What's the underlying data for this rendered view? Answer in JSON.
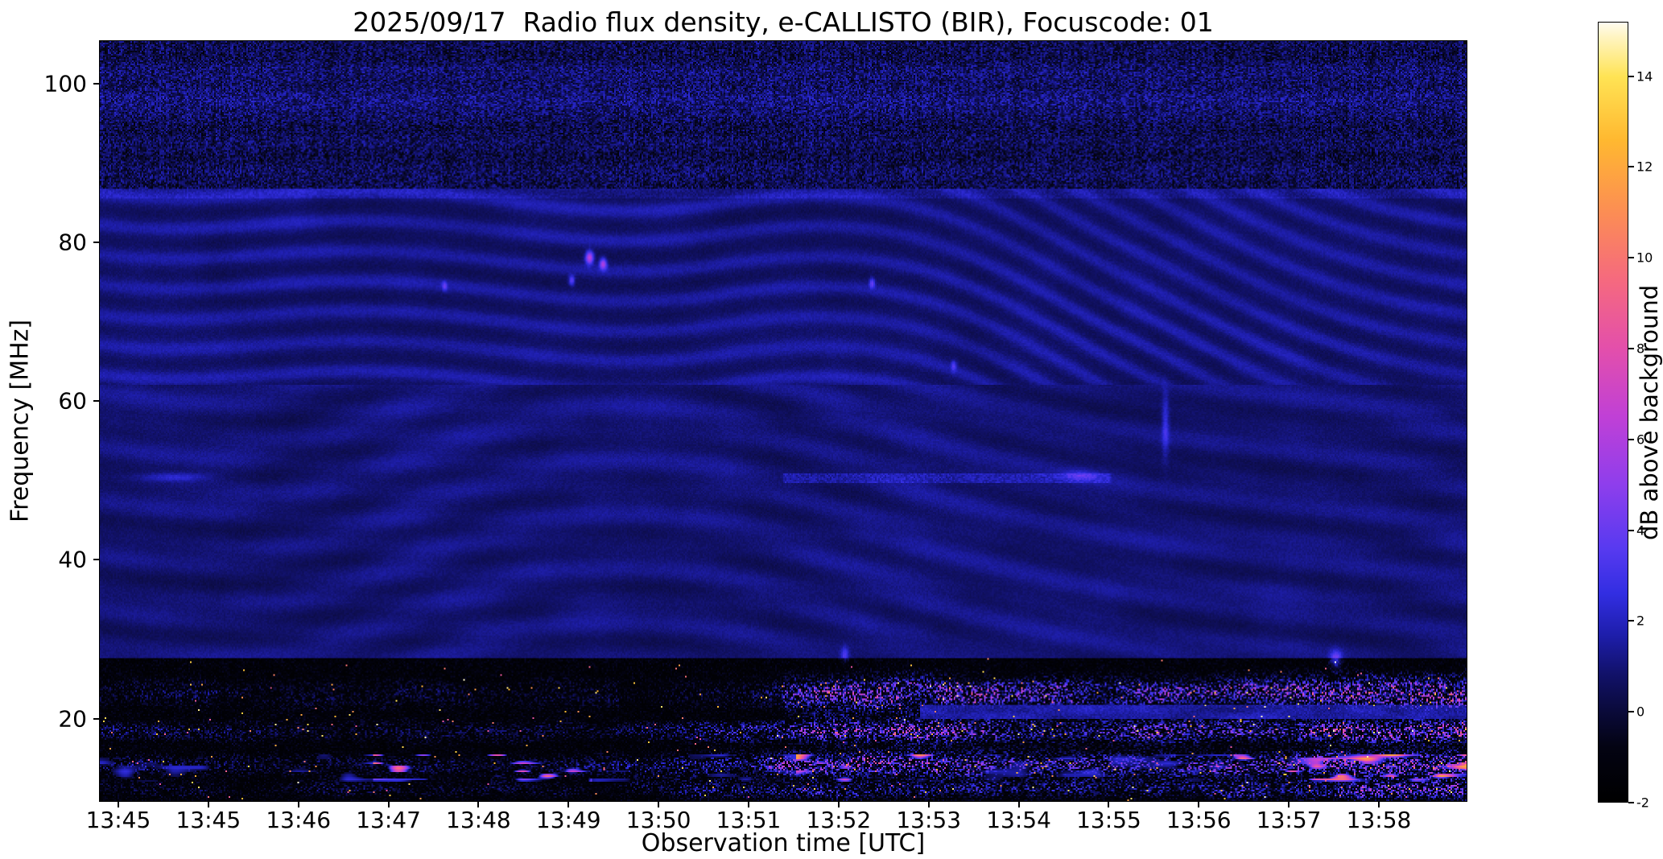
{
  "chart_data": {
    "type": "heatmap",
    "title": "2025/09/17  Radio flux density, e-CALLISTO (BIR), Focuscode: 01",
    "xlabel": "Observation time [UTC]",
    "ylabel": "Frequency [MHz]",
    "date": "2025/09/17",
    "station": "e-CALLISTO (BIR)",
    "focuscode": "01",
    "x_tick_labels": [
      "13:45",
      "13:45",
      "13:46",
      "13:47",
      "13:48",
      "13:49",
      "13:50",
      "13:51",
      "13:52",
      "13:53",
      "13:54",
      "13:55",
      "13:56",
      "13:57",
      "13:58"
    ],
    "y_tick_values": [
      20,
      40,
      60,
      80,
      100
    ],
    "freq_range_mhz": [
      9.5,
      105.5
    ],
    "time_range_utc": [
      "13:45",
      "13:59"
    ],
    "grid": false,
    "legend": false,
    "x_tick_layout": {
      "first_frac": 0.0141,
      "step_frac": 0.0658
    },
    "color_scale": {
      "label": "dB above background",
      "tick_values": [
        -2,
        0,
        2,
        4,
        6,
        8,
        10,
        12,
        14
      ],
      "vmin": -2,
      "vmax": 15.2,
      "stops": [
        {
          "v": -2.0,
          "rgb": [
            0,
            0,
            0
          ]
        },
        {
          "v": -0.8,
          "rgb": [
            3,
            3,
            18
          ]
        },
        {
          "v": 0.0,
          "rgb": [
            10,
            10,
            58
          ]
        },
        {
          "v": 0.8,
          "rgb": [
            17,
            17,
            104
          ]
        },
        {
          "v": 1.7,
          "rgb": [
            30,
            30,
            172
          ]
        },
        {
          "v": 2.6,
          "rgb": [
            50,
            46,
            226
          ]
        },
        {
          "v": 3.6,
          "rgb": [
            88,
            58,
            240
          ]
        },
        {
          "v": 5.0,
          "rgb": [
            142,
            62,
            236
          ]
        },
        {
          "v": 6.5,
          "rgb": [
            192,
            64,
            214
          ]
        },
        {
          "v": 8.0,
          "rgb": [
            227,
            79,
            171
          ]
        },
        {
          "v": 9.5,
          "rgb": [
            245,
            105,
            127
          ]
        },
        {
          "v": 11.0,
          "rgb": [
            252,
            141,
            84
          ]
        },
        {
          "v": 12.6,
          "rgb": [
            255,
            184,
            48
          ]
        },
        {
          "v": 14.0,
          "rgb": [
            255,
            227,
            84
          ]
        },
        {
          "v": 14.9,
          "rgb": [
            255,
            245,
            196
          ]
        },
        {
          "v": 15.2,
          "rgb": [
            255,
            252,
            240
          ]
        }
      ]
    },
    "features": [
      "Quiet dark-blue background (~0-1 dB) over 28-86 MHz crossed by slowly drifting wavy interference fringes that steepen into diagonal herringbone stripes after ~13:52",
      "Speckled near-background noise band from ~87-105 MHz",
      "Strong broadband HF interference below ~27 MHz in bands near 23, 18, 14 and 11 MHz with bursts up to ~15 dB, intensifying after 13:52 and strongest 13:57-13:59",
      "Faint enhanced line near 50.3 MHz between ~13:52 and ~13:55",
      "Compact pink/magenta point bursts near 78 MHz around 13:50"
    ],
    "rfi_bands": [
      {
        "center_mhz": 23.0,
        "width": 6.0,
        "amp": 0.85
      },
      {
        "center_mhz": 18.2,
        "width": 2.2,
        "amp": 1.0
      },
      {
        "center_mhz": 14.0,
        "width": 2.6,
        "amp": 1.0
      },
      {
        "center_mhz": 10.8,
        "width": 1.6,
        "amp": 0.75
      }
    ],
    "h_lines": [
      {
        "f": 50.3,
        "t0": 0.5,
        "t1": 0.74,
        "amp": 0.85
      },
      {
        "f": 86.3,
        "t0": 0.0,
        "t1": 1.0,
        "amp": 0.45
      }
    ],
    "point_events": [
      {
        "t": 0.358,
        "f": 78.2,
        "amp": 6.0,
        "st": 0.002,
        "sf": 0.55
      },
      {
        "t": 0.368,
        "f": 77.4,
        "amp": 5.0,
        "st": 0.0018,
        "sf": 0.5
      },
      {
        "t": 0.345,
        "f": 75.3,
        "amp": 3.2,
        "st": 0.0015,
        "sf": 0.45
      },
      {
        "t": 0.252,
        "f": 74.6,
        "amp": 2.6,
        "st": 0.0013,
        "sf": 0.4
      },
      {
        "t": 0.565,
        "f": 75.0,
        "amp": 3.0,
        "st": 0.0014,
        "sf": 0.45
      },
      {
        "t": 0.625,
        "f": 64.5,
        "amp": 2.2,
        "st": 0.0015,
        "sf": 0.5
      },
      {
        "t": 0.78,
        "f": 57.0,
        "amp": 2.0,
        "st": 0.0018,
        "sf": 2.8
      },
      {
        "t": 0.718,
        "f": 50.6,
        "amp": 1.6,
        "st": 0.008,
        "sf": 0.45
      },
      {
        "t": 0.055,
        "f": 50.4,
        "amp": 1.6,
        "st": 0.018,
        "sf": 0.4
      },
      {
        "t": 0.905,
        "f": 27.3,
        "amp": 3.5,
        "st": 0.003,
        "sf": 0.8
      },
      {
        "t": 0.545,
        "f": 27.9,
        "amp": 2.4,
        "st": 0.002,
        "sf": 0.7
      }
    ]
  }
}
